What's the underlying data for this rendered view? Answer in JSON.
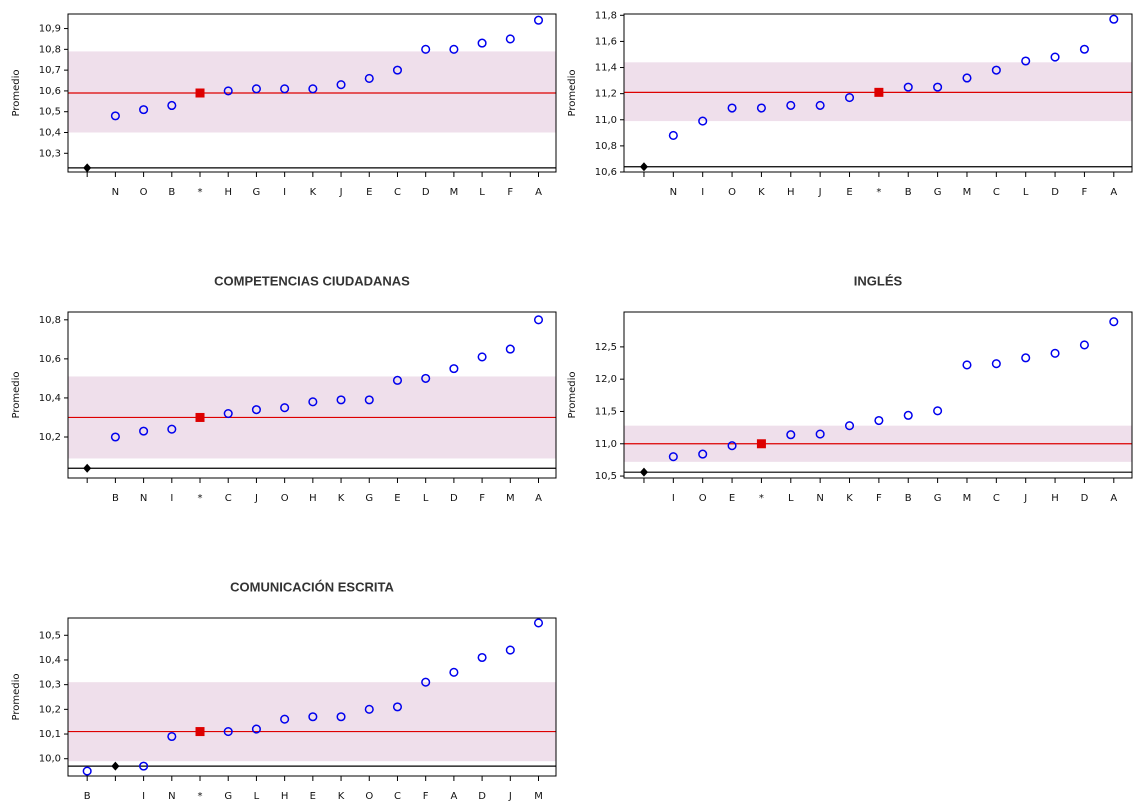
{
  "chart_data": [
    {
      "type": "dot",
      "ylabel": "Promedio",
      "categories": [
        null,
        "N",
        "O",
        "B",
        "*",
        "H",
        "G",
        "I",
        "K",
        "J",
        "E",
        "C",
        "D",
        "M",
        "L",
        "F",
        "A"
      ],
      "ylim": [
        10.21,
        10.97
      ],
      "yticks": [
        {
          "value": 10.3,
          "label": "10,3"
        },
        {
          "value": 10.4,
          "label": "10,4"
        },
        {
          "value": 10.5,
          "label": "10,5"
        },
        {
          "value": 10.6,
          "label": "10,6"
        },
        {
          "value": 10.7,
          "label": "10,7"
        },
        {
          "value": 10.8,
          "label": "10,8"
        },
        {
          "value": 10.9,
          "label": "10,9"
        }
      ],
      "band": [
        10.4,
        10.79
      ],
      "band_color": "#efdfeb",
      "series": [
        {
          "color": "#0000ee",
          "marker": "circle",
          "values": [
            null,
            10.48,
            10.51,
            10.53,
            null,
            10.6,
            10.61,
            10.61,
            10.61,
            10.63,
            10.66,
            10.7,
            10.8,
            10.8,
            10.83,
            10.85,
            10.94
          ]
        },
        {
          "color": "#dd0000",
          "marker": "square",
          "line": true,
          "values": [
            null,
            null,
            null,
            null,
            10.59,
            null,
            null,
            null,
            null,
            null,
            null,
            null,
            null,
            null,
            null,
            null,
            null
          ]
        },
        {
          "color": "#000000",
          "marker": "diamond",
          "line": true,
          "values": [
            10.23,
            null,
            null,
            null,
            null,
            null,
            null,
            null,
            null,
            null,
            null,
            null,
            null,
            null,
            null,
            null,
            null
          ]
        }
      ]
    },
    {
      "type": "dot",
      "ylabel": "Promedio",
      "categories": [
        null,
        "N",
        "I",
        "O",
        "K",
        "H",
        "J",
        "E",
        "*",
        "B",
        "G",
        "M",
        "C",
        "L",
        "D",
        "F",
        "A"
      ],
      "ylim": [
        10.6,
        11.81
      ],
      "yticks": [
        {
          "value": 10.6,
          "label": "10,6"
        },
        {
          "value": 10.8,
          "label": "10,8"
        },
        {
          "value": 11.0,
          "label": "11,0"
        },
        {
          "value": 11.2,
          "label": "11,2"
        },
        {
          "value": 11.4,
          "label": "11,4"
        },
        {
          "value": 11.6,
          "label": "11,6"
        },
        {
          "value": 11.8,
          "label": "11,8"
        }
      ],
      "band": [
        10.99,
        11.44
      ],
      "band_color": "#efdfeb",
      "series": [
        {
          "color": "#0000ee",
          "marker": "circle",
          "values": [
            null,
            10.88,
            10.99,
            11.09,
            11.09,
            11.11,
            11.11,
            11.17,
            null,
            11.25,
            11.25,
            11.32,
            11.38,
            11.45,
            11.48,
            11.54,
            11.77
          ]
        },
        {
          "color": "#dd0000",
          "marker": "square",
          "line": true,
          "values": [
            null,
            null,
            null,
            null,
            null,
            null,
            null,
            null,
            11.21,
            null,
            null,
            null,
            null,
            null,
            null,
            null,
            null
          ]
        },
        {
          "color": "#000000",
          "marker": "diamond",
          "line": true,
          "values": [
            10.64,
            null,
            null,
            null,
            null,
            null,
            null,
            null,
            null,
            null,
            null,
            null,
            null,
            null,
            null,
            null,
            null
          ]
        }
      ]
    },
    {
      "type": "dot",
      "title": "COMPETENCIAS CIUDADANAS",
      "ylabel": "Promedio",
      "categories": [
        null,
        "B",
        "N",
        "I",
        "*",
        "C",
        "J",
        "O",
        "H",
        "K",
        "G",
        "E",
        "L",
        "D",
        "F",
        "M",
        "A"
      ],
      "ylim": [
        9.99,
        10.84
      ],
      "yticks": [
        {
          "value": 10.2,
          "label": "10,2"
        },
        {
          "value": 10.4,
          "label": "10,4"
        },
        {
          "value": 10.6,
          "label": "10,6"
        },
        {
          "value": 10.8,
          "label": "10,8"
        }
      ],
      "band": [
        10.09,
        10.51
      ],
      "band_color": "#efdfeb",
      "series": [
        {
          "color": "#0000ee",
          "marker": "circle",
          "values": [
            null,
            10.2,
            10.23,
            10.24,
            null,
            10.32,
            10.34,
            10.35,
            10.38,
            10.39,
            10.39,
            10.49,
            10.5,
            10.55,
            10.61,
            10.65,
            10.8
          ]
        },
        {
          "color": "#dd0000",
          "marker": "square",
          "line": true,
          "values": [
            null,
            null,
            null,
            null,
            10.3,
            null,
            null,
            null,
            null,
            null,
            null,
            null,
            null,
            null,
            null,
            null,
            null
          ]
        },
        {
          "color": "#000000",
          "marker": "diamond",
          "line": true,
          "values": [
            10.04,
            null,
            null,
            null,
            null,
            null,
            null,
            null,
            null,
            null,
            null,
            null,
            null,
            null,
            null,
            null,
            null
          ]
        }
      ]
    },
    {
      "type": "dot",
      "title": "INGLÉS",
      "ylabel": "Promedio",
      "categories": [
        null,
        "I",
        "O",
        "E",
        "*",
        "L",
        "N",
        "K",
        "F",
        "B",
        "G",
        "M",
        "C",
        "J",
        "H",
        "D",
        "A"
      ],
      "ylim": [
        10.47,
        13.04
      ],
      "yticks": [
        {
          "value": 10.5,
          "label": "10,5"
        },
        {
          "value": 11.0,
          "label": "11,0"
        },
        {
          "value": 11.5,
          "label": "11,5"
        },
        {
          "value": 12.0,
          "label": "12,0"
        },
        {
          "value": 12.5,
          "label": "12,5"
        }
      ],
      "band": [
        10.72,
        11.28
      ],
      "band_color": "#efdfeb",
      "series": [
        {
          "color": "#0000ee",
          "marker": "circle",
          "values": [
            null,
            10.8,
            10.84,
            10.97,
            null,
            11.14,
            11.15,
            11.28,
            11.36,
            11.44,
            11.51,
            12.22,
            12.24,
            12.33,
            12.4,
            12.53,
            12.89
          ]
        },
        {
          "color": "#dd0000",
          "marker": "square",
          "line": true,
          "values": [
            null,
            null,
            null,
            null,
            11.0,
            null,
            null,
            null,
            null,
            null,
            null,
            null,
            null,
            null,
            null,
            null,
            null
          ]
        },
        {
          "color": "#000000",
          "marker": "diamond",
          "line": true,
          "values": [
            10.56,
            null,
            null,
            null,
            null,
            null,
            null,
            null,
            null,
            null,
            null,
            null,
            null,
            null,
            null,
            null,
            null
          ]
        }
      ]
    },
    {
      "type": "dot",
      "title": "COMUNICACIÓN ESCRITA",
      "ylabel": "Promedio",
      "categories": [
        "B",
        null,
        "I",
        "N",
        "*",
        "G",
        "L",
        "H",
        "E",
        "K",
        "O",
        "C",
        "F",
        "A",
        "D",
        "J",
        "M"
      ],
      "ylim": [
        9.93,
        10.57
      ],
      "yticks": [
        {
          "value": 10.0,
          "label": "10,0"
        },
        {
          "value": 10.1,
          "label": "10,1"
        },
        {
          "value": 10.2,
          "label": "10,2"
        },
        {
          "value": 10.3,
          "label": "10,3"
        },
        {
          "value": 10.4,
          "label": "10,4"
        },
        {
          "value": 10.5,
          "label": "10,5"
        }
      ],
      "band": [
        9.99,
        10.31
      ],
      "band_color": "#efdfeb",
      "series": [
        {
          "color": "#0000ee",
          "marker": "circle",
          "values": [
            9.95,
            null,
            9.97,
            10.09,
            null,
            10.11,
            10.12,
            10.16,
            10.17,
            10.17,
            10.2,
            10.21,
            10.31,
            10.35,
            10.41,
            10.44,
            10.55
          ]
        },
        {
          "color": "#dd0000",
          "marker": "square",
          "line": true,
          "values": [
            null,
            null,
            null,
            null,
            10.11,
            null,
            null,
            null,
            null,
            null,
            null,
            null,
            null,
            null,
            null,
            null,
            null
          ]
        },
        {
          "color": "#000000",
          "marker": "diamond",
          "line": true,
          "values": [
            null,
            9.97,
            null,
            null,
            null,
            null,
            null,
            null,
            null,
            null,
            null,
            null,
            null,
            null,
            null,
            null,
            null
          ]
        }
      ]
    }
  ]
}
